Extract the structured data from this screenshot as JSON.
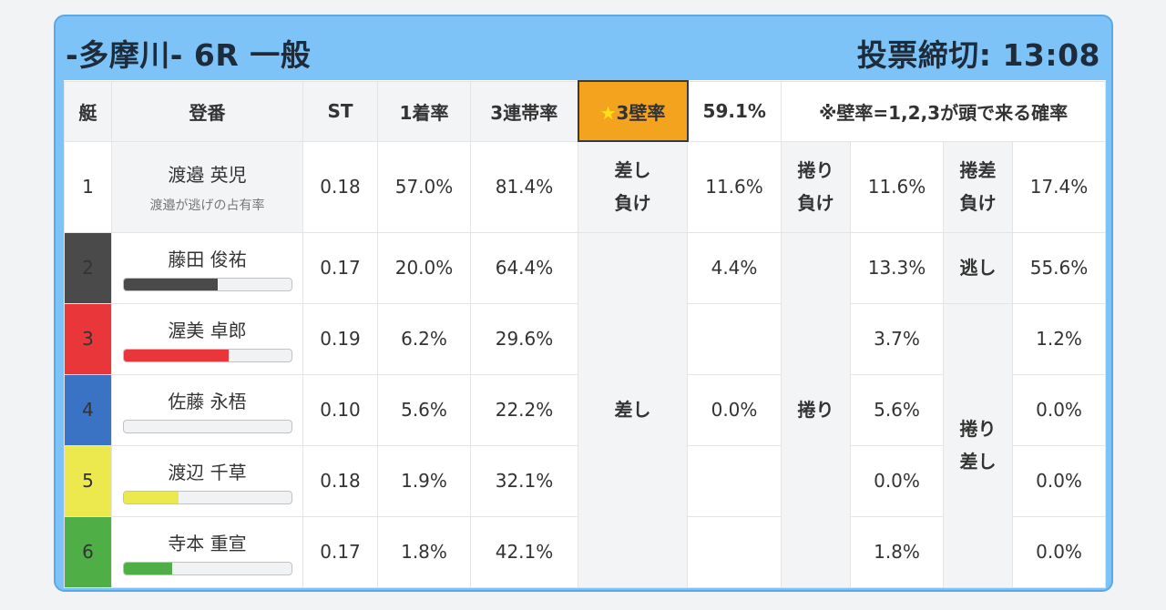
{
  "header": {
    "title": "-多摩川- 6R 一般",
    "deadline": "投票締切: 13:08"
  },
  "columns": {
    "lane": "艇",
    "name": "登番",
    "st": "ST",
    "first": "1着率",
    "top3": "3連帯率",
    "wall_star": "★",
    "wall_label": "3壁率",
    "wall_value": "59.1%",
    "note": "※壁率=1,2,3が頭で来る確率"
  },
  "boat1": {
    "lane": "1",
    "name": "渡邉 英児",
    "sub": "渡邉が逃げの占有率",
    "st": "0.18",
    "first": "57.0%",
    "top3": "81.4%",
    "sashi_make_a": "差し",
    "sashi_make_b": "負け",
    "sashi_make_val": "11.6%",
    "makuri_make_a": "捲り",
    "makuri_make_b": "負け",
    "makuri_make_val": "11.6%",
    "makurizashi_make_a": "捲差",
    "makurizashi_make_b": "負け",
    "makurizashi_make_val": "17.4%"
  },
  "boats": [
    {
      "lane": "2",
      "name": "藤田 俊祐",
      "st": "0.17",
      "first": "20.0%",
      "top3": "64.4%",
      "bar_pct": 0.56,
      "bar_color": "#4a4a4a",
      "sashi": "4.4%",
      "makuri": "13.3%",
      "last": "55.6%"
    },
    {
      "lane": "3",
      "name": "渥美 卓郎",
      "st": "0.19",
      "first": "6.2%",
      "top3": "29.6%",
      "bar_pct": 0.63,
      "bar_color": "#e8363a",
      "sashi": "",
      "makuri": "3.7%",
      "last": "1.2%"
    },
    {
      "lane": "4",
      "name": "佐藤 永梧",
      "st": "0.10",
      "first": "5.6%",
      "top3": "22.2%",
      "bar_pct": 0.0,
      "bar_color": "#3a72c4",
      "sashi": "0.0%",
      "makuri": "5.6%",
      "last": "0.0%"
    },
    {
      "lane": "5",
      "name": "渡辺 千草",
      "st": "0.18",
      "first": "1.9%",
      "top3": "32.1%",
      "bar_pct": 0.33,
      "bar_color": "#ece94e",
      "sashi": "",
      "makuri": "0.0%",
      "last": "0.0%"
    },
    {
      "lane": "6",
      "name": "寺本 重宣",
      "st": "0.17",
      "first": "1.8%",
      "top3": "42.1%",
      "bar_pct": 0.29,
      "bar_color": "#4fae45",
      "sashi": "",
      "makuri": "1.8%",
      "last": "0.0%"
    }
  ],
  "labels": {
    "sashi": "差し",
    "makuri": "捲り",
    "nige": "逃し",
    "makurizashi_a": "捲り",
    "makurizashi_b": "差し"
  }
}
